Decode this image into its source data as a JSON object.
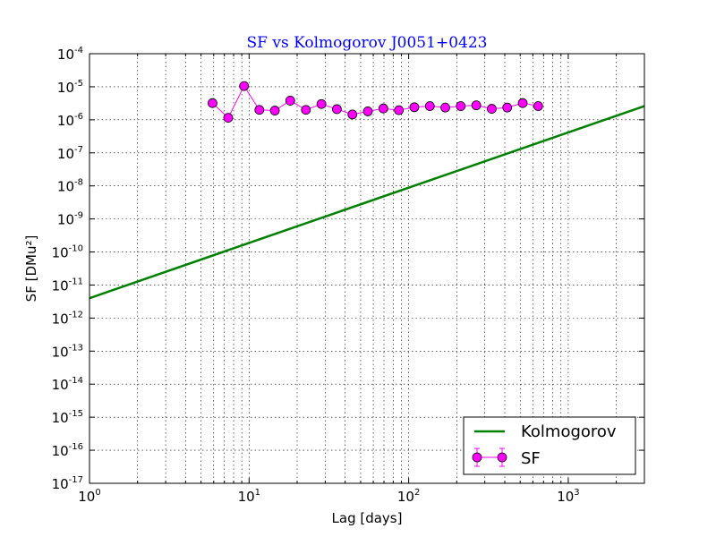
{
  "chart_data": {
    "type": "line",
    "title": "SF vs Kolmogorov J0051+0423",
    "xlabel": "Lag [days]",
    "ylabel": "SF [DMu²]",
    "xscale": "log",
    "yscale": "log",
    "xlim": [
      1,
      3000
    ],
    "ylim": [
      1e-17,
      0.0001
    ],
    "grid": true,
    "legend_placement": "bottom-right",
    "x_ticks": [
      {
        "base": "10",
        "exp": "0",
        "value": 1
      },
      {
        "base": "10",
        "exp": "1",
        "value": 10
      },
      {
        "base": "10",
        "exp": "2",
        "value": 100
      },
      {
        "base": "10",
        "exp": "3",
        "value": 1000
      }
    ],
    "y_ticks": [
      {
        "base": "10",
        "exp": "-4",
        "value": -4
      },
      {
        "base": "10",
        "exp": "-5",
        "value": -5
      },
      {
        "base": "10",
        "exp": "-6",
        "value": -6
      },
      {
        "base": "10",
        "exp": "-7",
        "value": -7
      },
      {
        "base": "10",
        "exp": "-8",
        "value": -8
      },
      {
        "base": "10",
        "exp": "-9",
        "value": -9
      },
      {
        "base": "10",
        "exp": "-10",
        "value": -10
      },
      {
        "base": "10",
        "exp": "-11",
        "value": -11
      },
      {
        "base": "10",
        "exp": "-12",
        "value": -12
      },
      {
        "base": "10",
        "exp": "-13",
        "value": -13
      },
      {
        "base": "10",
        "exp": "-14",
        "value": -14
      },
      {
        "base": "10",
        "exp": "-15",
        "value": -15
      },
      {
        "base": "10",
        "exp": "-16",
        "value": -16
      },
      {
        "base": "10",
        "exp": "-17",
        "value": -17
      }
    ],
    "series": [
      {
        "name": "Kolmogorov",
        "kind": "line",
        "color": "#008000",
        "x": [
          1,
          3000
        ],
        "y": [
          4e-12,
          2.6e-06
        ]
      },
      {
        "name": "SF",
        "kind": "markers-with-errorbars",
        "color": "#ff00ff",
        "x": [
          5.9,
          7.4,
          9.3,
          11.6,
          14.5,
          18.1,
          22.7,
          28.4,
          35.5,
          44.4,
          55.5,
          69.4,
          86.8,
          108.5,
          135.7,
          169.6,
          212.1,
          265.2,
          331.5,
          414.5,
          518.2,
          647.9
        ],
        "y": [
          3.2e-06,
          1.15e-06,
          1.05e-05,
          2e-06,
          1.9e-06,
          3.8e-06,
          2e-06,
          3e-06,
          2.1e-06,
          1.45e-06,
          1.8e-06,
          2.2e-06,
          1.95e-06,
          2.4e-06,
          2.6e-06,
          2.35e-06,
          2.6e-06,
          2.75e-06,
          2.15e-06,
          2.35e-06,
          3.2e-06,
          2.6e-06
        ]
      }
    ]
  }
}
